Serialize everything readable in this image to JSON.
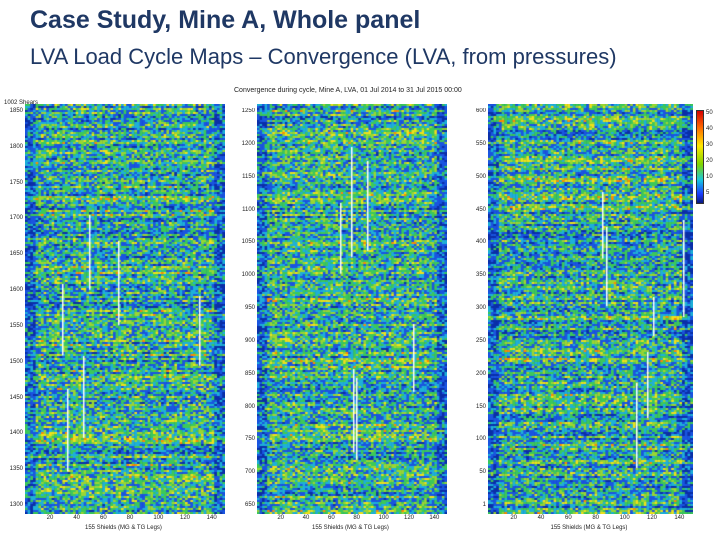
{
  "slide": {
    "title": "Case Study, Mine A, Whole panel",
    "subtitle": "LVA Load Cycle Maps – Convergence (LVA, from pressures)"
  },
  "figure_title": "Convergence during cycle, Mine A, LVA, 01 Jul 2014 to 31 Jul 2015 00:00",
  "corner_label": "1002 Shears",
  "chart_data": [
    {
      "type": "heatmap",
      "title": "",
      "xlabel": "155 Shields (MG & TG Legs)",
      "ylabel": "",
      "x_ticks": [
        "20",
        "40",
        "60",
        "80",
        "100",
        "120",
        "140"
      ],
      "y_ticks": [
        "1850",
        "1800",
        "1750",
        "1700",
        "1650",
        "1600",
        "1550",
        "1500",
        "1450",
        "1400",
        "1350",
        "1300"
      ],
      "xlim": [
        0,
        150
      ],
      "ylim": [
        1270,
        1870
      ]
    },
    {
      "type": "heatmap",
      "title": "",
      "xlabel": "155 Shields (MG & TG Legs)",
      "ylabel": "",
      "x_ticks": [
        "20",
        "40",
        "60",
        "80",
        "100",
        "120",
        "140"
      ],
      "y_ticks": [
        "1250",
        "1200",
        "1150",
        "1100",
        "1050",
        "1000",
        "950",
        "900",
        "850",
        "800",
        "750",
        "700",
        "650"
      ],
      "xlim": [
        0,
        150
      ],
      "ylim": [
        630,
        1255
      ]
    },
    {
      "type": "heatmap",
      "title": "",
      "xlabel": "155 Shields (MG & TG Legs)",
      "ylabel": "",
      "x_ticks": [
        "20",
        "40",
        "60",
        "80",
        "100",
        "120",
        "140"
      ],
      "y_ticks": [
        "600",
        "550",
        "500",
        "450",
        "400",
        "350",
        "300",
        "250",
        "200",
        "150",
        "100",
        "50",
        "1"
      ],
      "xlim": [
        0,
        150
      ],
      "ylim": [
        1,
        630
      ]
    }
  ],
  "colorbar": {
    "ticks": [
      "50",
      "40",
      "30",
      "20",
      "10",
      "5"
    ],
    "colors": [
      "#d60000",
      "#ff6a00",
      "#ffe800",
      "#7fd400",
      "#18c8e0",
      "#1a3cff",
      "#0a1a80"
    ]
  }
}
